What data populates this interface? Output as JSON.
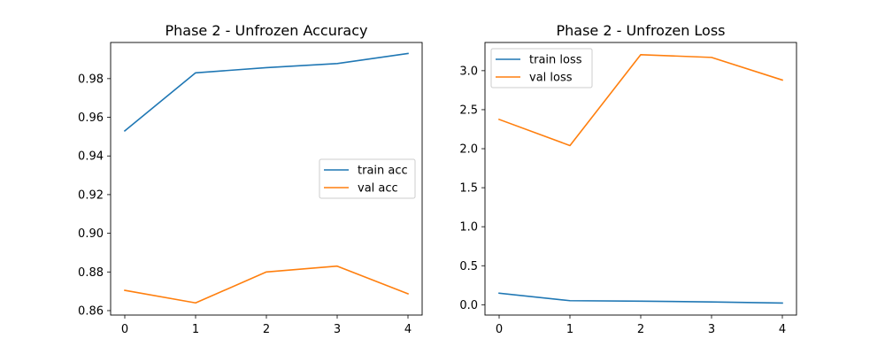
{
  "chart_data": [
    {
      "type": "line",
      "title": "Phase 2 - Unfrozen Accuracy",
      "xlabel": "",
      "ylabel": "",
      "x": [
        0,
        1,
        2,
        3,
        4
      ],
      "xticks": [
        "0",
        "1",
        "2",
        "3",
        "4"
      ],
      "xlim": [
        -0.2,
        4.2
      ],
      "ylim": [
        0.8577,
        0.9987
      ],
      "yticks": [
        "0.86",
        "0.88",
        "0.90",
        "0.92",
        "0.94",
        "0.96",
        "0.98"
      ],
      "ytick_values": [
        0.86,
        0.88,
        0.9,
        0.92,
        0.94,
        0.96,
        0.98
      ],
      "grid": false,
      "legend_position": "center-right",
      "series": [
        {
          "name": "train acc",
          "color": "#1f77b4",
          "values": [
            0.953,
            0.983,
            0.9857,
            0.9878,
            0.993
          ]
        },
        {
          "name": "val acc",
          "color": "#ff7f0e",
          "values": [
            0.8705,
            0.864,
            0.88,
            0.883,
            0.8687
          ]
        }
      ]
    },
    {
      "type": "line",
      "title": "Phase 2 - Unfrozen Loss",
      "xlabel": "",
      "ylabel": "",
      "x": [
        0,
        1,
        2,
        3,
        4
      ],
      "xticks": [
        "0",
        "1",
        "2",
        "3",
        "4"
      ],
      "xlim": [
        -0.2,
        4.2
      ],
      "ylim": [
        -0.1323,
        3.3614
      ],
      "yticks": [
        "0.0",
        "0.5",
        "1.0",
        "1.5",
        "2.0",
        "2.5",
        "3.0"
      ],
      "ytick_values": [
        0.0,
        0.5,
        1.0,
        1.5,
        2.0,
        2.5,
        3.0
      ],
      "grid": false,
      "legend_position": "top-left",
      "series": [
        {
          "name": "train loss",
          "color": "#1f77b4",
          "values": [
            0.148,
            0.052,
            0.046,
            0.036,
            0.022
          ]
        },
        {
          "name": "val loss",
          "color": "#ff7f0e",
          "values": [
            2.375,
            2.04,
            3.205,
            3.17,
            2.88
          ]
        }
      ]
    }
  ]
}
